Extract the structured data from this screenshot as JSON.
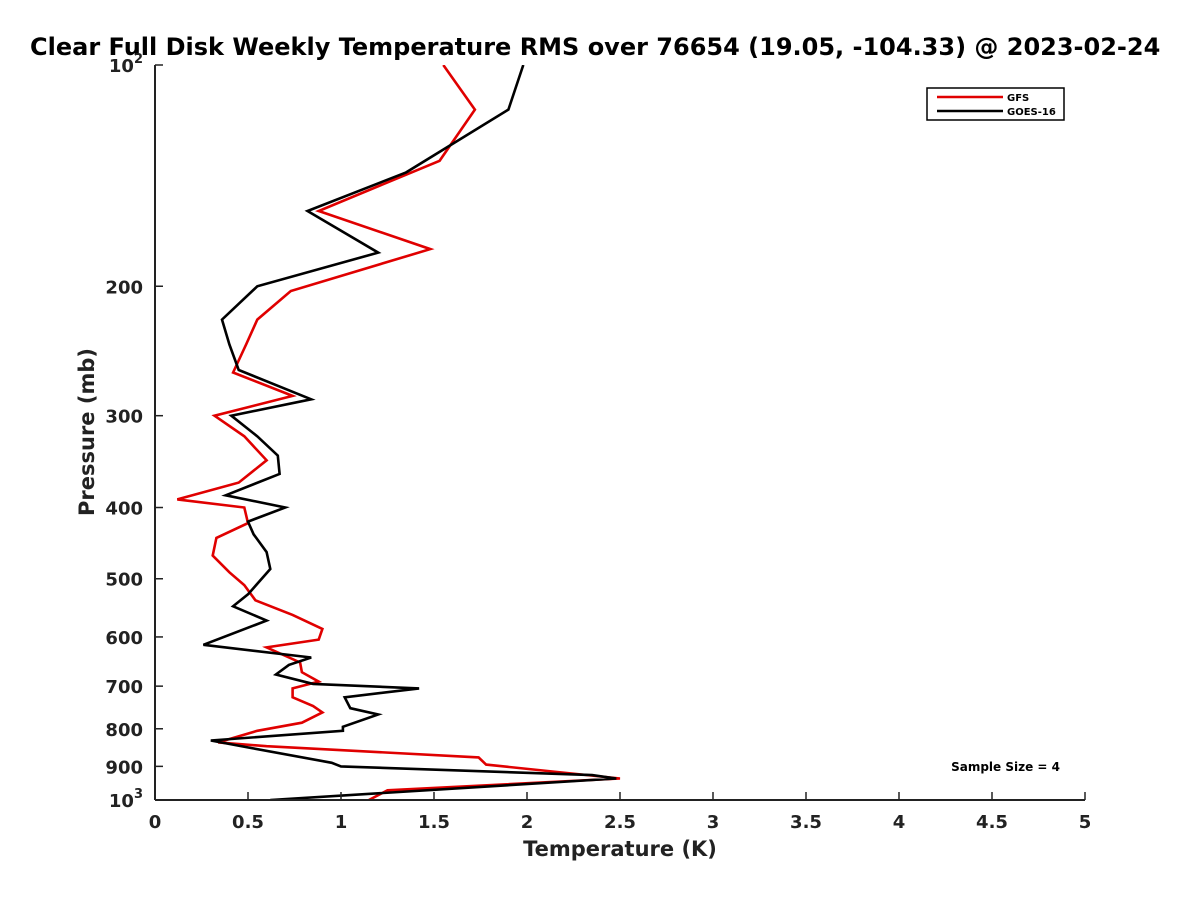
{
  "chart_data": {
    "type": "line",
    "title": "Clear Full Disk Weekly Temperature RMS over 76654 (19.05, -104.33) @ 2023-02-24",
    "xlabel": "Temperature (K)",
    "ylabel": "Pressure (mb)",
    "xlim": [
      0,
      5
    ],
    "ylim": [
      100,
      1000
    ],
    "y_scale": "log",
    "y_reversed": true,
    "x_ticks": [
      "0",
      "0.5",
      "1",
      "1.5",
      "2",
      "2.5",
      "3",
      "3.5",
      "4",
      "4.5",
      "5"
    ],
    "y_ticks": [
      {
        "value": 100,
        "base": "10",
        "exp": "2"
      },
      {
        "value": 200,
        "label": "200"
      },
      {
        "value": 300,
        "label": "300"
      },
      {
        "value": 400,
        "label": "400"
      },
      {
        "value": 500,
        "label": "500"
      },
      {
        "value": 600,
        "label": "600"
      },
      {
        "value": 700,
        "label": "700"
      },
      {
        "value": 800,
        "label": "800"
      },
      {
        "value": 900,
        "label": "900"
      },
      {
        "value": 1000,
        "base": "10",
        "exp": "3"
      }
    ],
    "grid": false,
    "legend_position": "top-right",
    "annotation": "Sample Size = 4",
    "series": [
      {
        "name": "GFS",
        "color": "#e00000",
        "points": [
          [
            1.55,
            100
          ],
          [
            1.72,
            115
          ],
          [
            1.53,
            135
          ],
          [
            0.88,
            158
          ],
          [
            1.48,
            178
          ],
          [
            0.73,
            203
          ],
          [
            0.55,
            222
          ],
          [
            0.49,
            240
          ],
          [
            0.42,
            262
          ],
          [
            0.74,
            282
          ],
          [
            0.32,
            300
          ],
          [
            0.48,
            320
          ],
          [
            0.6,
            345
          ],
          [
            0.45,
            370
          ],
          [
            0.12,
            390
          ],
          [
            0.48,
            400
          ],
          [
            0.5,
            420
          ],
          [
            0.33,
            440
          ],
          [
            0.31,
            465
          ],
          [
            0.4,
            490
          ],
          [
            0.48,
            510
          ],
          [
            0.54,
            535
          ],
          [
            0.74,
            560
          ],
          [
            0.9,
            585
          ],
          [
            0.88,
            605
          ],
          [
            0.6,
            620
          ],
          [
            0.78,
            650
          ],
          [
            0.79,
            670
          ],
          [
            0.88,
            690
          ],
          [
            0.74,
            705
          ],
          [
            0.74,
            725
          ],
          [
            0.85,
            745
          ],
          [
            0.9,
            760
          ],
          [
            0.79,
            785
          ],
          [
            0.55,
            805
          ],
          [
            0.34,
            835
          ],
          [
            0.6,
            845
          ],
          [
            1.74,
            875
          ],
          [
            1.78,
            895
          ],
          [
            2.5,
            935
          ],
          [
            1.25,
            970
          ],
          [
            1.15,
            1000
          ]
        ]
      },
      {
        "name": "GOES-16",
        "color": "#000000",
        "points": [
          [
            1.98,
            100
          ],
          [
            1.9,
            115
          ],
          [
            1.35,
            140
          ],
          [
            0.82,
            158
          ],
          [
            1.2,
            180
          ],
          [
            0.55,
            200
          ],
          [
            0.36,
            222
          ],
          [
            0.4,
            240
          ],
          [
            0.45,
            260
          ],
          [
            0.84,
            285
          ],
          [
            0.41,
            300
          ],
          [
            0.55,
            320
          ],
          [
            0.66,
            340
          ],
          [
            0.67,
            360
          ],
          [
            0.38,
            385
          ],
          [
            0.7,
            400
          ],
          [
            0.5,
            418
          ],
          [
            0.53,
            435
          ],
          [
            0.6,
            460
          ],
          [
            0.62,
            485
          ],
          [
            0.5,
            525
          ],
          [
            0.42,
            545
          ],
          [
            0.6,
            570
          ],
          [
            0.26,
            615
          ],
          [
            0.84,
            640
          ],
          [
            0.72,
            655
          ],
          [
            0.65,
            675
          ],
          [
            0.85,
            695
          ],
          [
            1.42,
            705
          ],
          [
            1.02,
            725
          ],
          [
            1.05,
            750
          ],
          [
            1.2,
            765
          ],
          [
            1.01,
            795
          ],
          [
            1.01,
            805
          ],
          [
            0.3,
            830
          ],
          [
            0.52,
            850
          ],
          [
            0.95,
            890
          ],
          [
            1.0,
            900
          ],
          [
            2.35,
            925
          ],
          [
            2.48,
            935
          ],
          [
            0.62,
            1000
          ]
        ]
      }
    ]
  }
}
